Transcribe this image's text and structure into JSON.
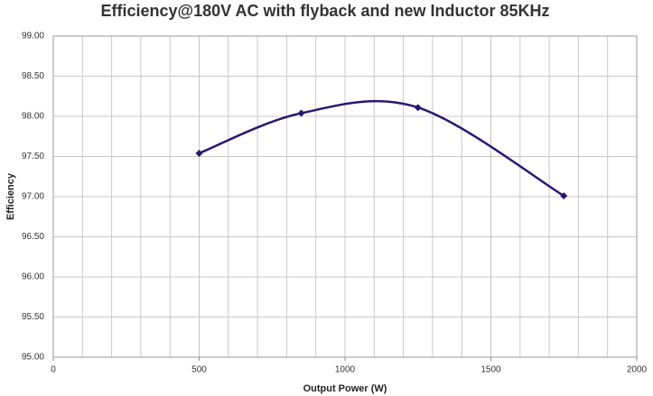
{
  "chart_data": {
    "type": "line",
    "title": "Efficiency@180V AC with flyback and new Inductor 85KHz",
    "x_label": "Output Power (W)",
    "y_label": "Efficiency",
    "x": [
      500,
      850,
      1250,
      1750
    ],
    "series": [
      {
        "name": "Efficiency",
        "color": "#2b1770",
        "values": [
          97.54,
          98.04,
          98.11,
          97.01
        ]
      }
    ],
    "xlim": [
      0,
      2000
    ],
    "xticks": [
      0,
      500,
      1000,
      1500,
      2000
    ],
    "xgrid": [
      0,
      100,
      200,
      300,
      400,
      500,
      600,
      700,
      800,
      900,
      1000,
      1100,
      1200,
      1300,
      1400,
      1500,
      1600,
      1700,
      1800,
      1900,
      2000
    ],
    "ylim": [
      95,
      99
    ],
    "yticks": [
      {
        "value": 95,
        "label": "95.00"
      },
      {
        "value": 95.5,
        "label": "95.50"
      },
      {
        "value": 96,
        "label": "96.00"
      },
      {
        "value": 96.5,
        "label": "96.50"
      },
      {
        "value": 97,
        "label": "97.00"
      },
      {
        "value": 97.5,
        "label": "97.50"
      },
      {
        "value": 98,
        "label": "98.00"
      },
      {
        "value": 98.5,
        "label": "98.50"
      },
      {
        "value": 99,
        "label": "99.00"
      }
    ],
    "grid": true,
    "smooth": true,
    "marker": "diamond"
  }
}
